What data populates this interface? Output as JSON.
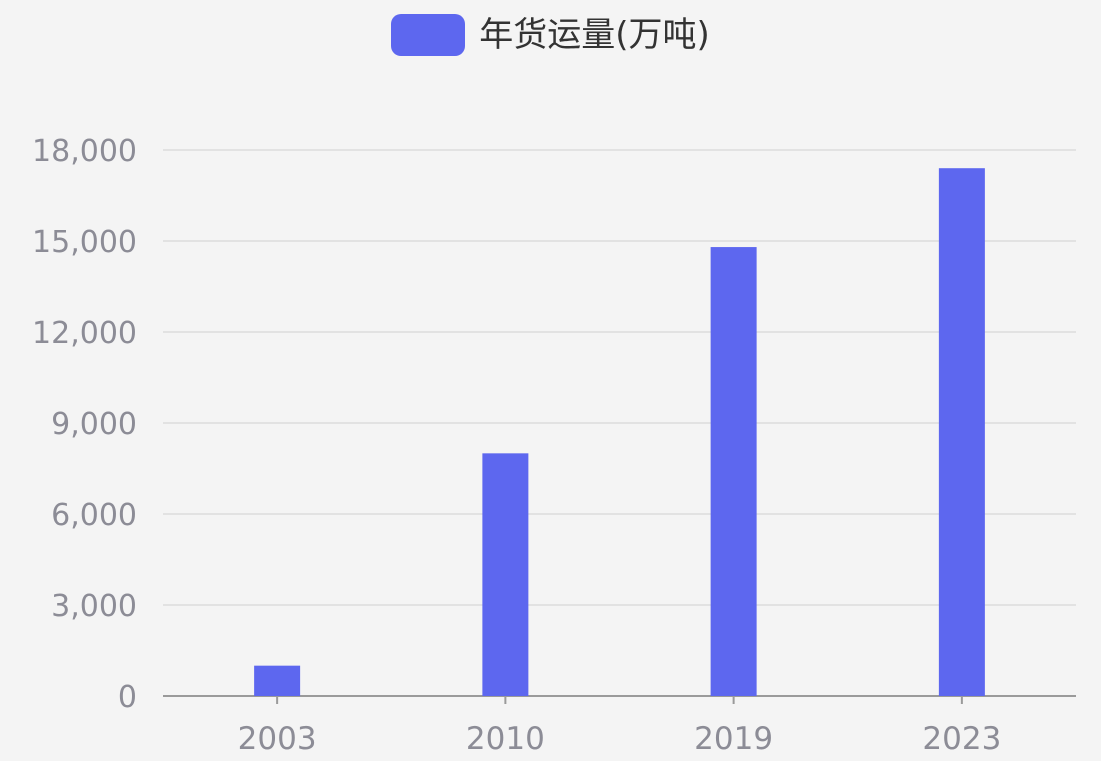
{
  "chart_data": {
    "type": "bar",
    "categories": [
      "2003",
      "2010",
      "2019",
      "2023"
    ],
    "series": [
      {
        "name": "年货运量(万吨)",
        "values": [
          1000,
          8000,
          14800,
          17400
        ]
      }
    ],
    "ylim": [
      0,
      18000
    ],
    "yticks": [
      0,
      3000,
      6000,
      9000,
      12000,
      15000,
      18000
    ],
    "ytick_labels": [
      "0",
      "3,000",
      "6,000",
      "9,000",
      "12,000",
      "15,000",
      "18,000"
    ],
    "grid": true,
    "legend_position": "top-center",
    "colors": {
      "bar": "#5d67ef",
      "grid": "#dcdcdc",
      "axis": "#9a9a9a",
      "tick_text": "#8c8c96",
      "background": "#f4f4f4"
    }
  }
}
